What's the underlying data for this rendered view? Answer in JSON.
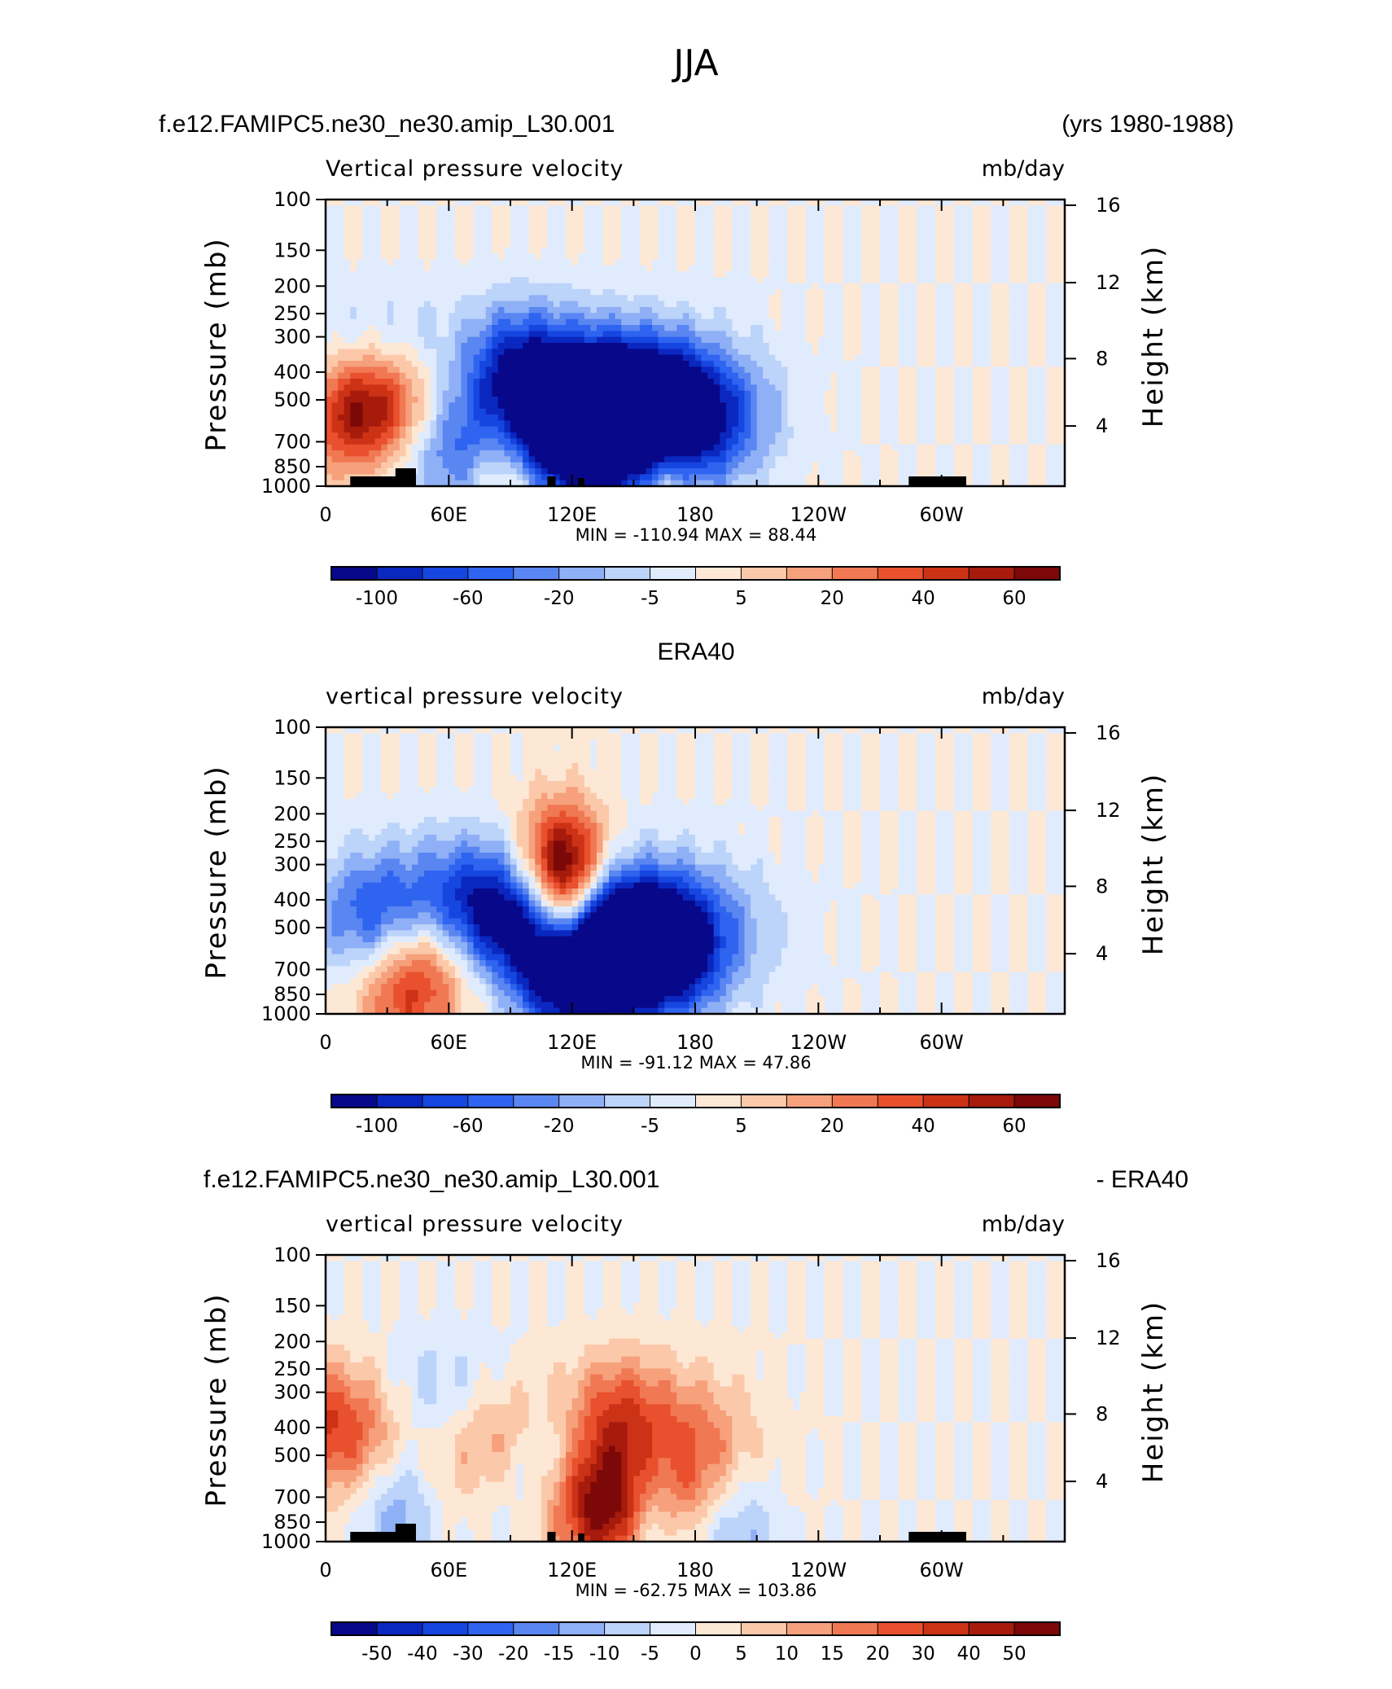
{
  "figure": {
    "title": "JJA"
  },
  "chart_data": [
    {
      "type": "heatmap",
      "header_left": "f.e12.FAMIPC5.ne30_ne30.amip_L30.001",
      "header_right": "(yrs 1980-1988)",
      "subtitle_left": "Vertical pressure velocity",
      "subtitle_right": "mb/day",
      "ylabel": "Pressure (mb)",
      "y2label": "Height (km)",
      "xticks": [
        "0",
        "60E",
        "120E",
        "180",
        "120W",
        "60W"
      ],
      "yticks": [
        "100",
        "150",
        "200",
        "250",
        "300",
        "400",
        "500",
        "700",
        "850",
        "1000"
      ],
      "y2ticks": [
        "16",
        "12",
        "8",
        "4"
      ],
      "min_label": "MIN =",
      "min_value": "-110.94",
      "max_label": "MAX =",
      "max_value": "88.44",
      "colorbar_labels": [
        "-100",
        "-60",
        "-20",
        "-5",
        "5",
        "20",
        "40",
        "60"
      ],
      "colorbar_colors": [
        "#08088a",
        "#0a28c0",
        "#1646e0",
        "#2f64f0",
        "#5a86f2",
        "#8fb0f6",
        "#bcd3fa",
        "#e0ecfd",
        "#fde8d6",
        "#fbc9aa",
        "#f6a07c",
        "#f07853",
        "#e8502e",
        "#cc3216",
        "#a61b0c",
        "#7d0808"
      ],
      "field": {
        "pos": [
          [
            18,
            4.5,
            42,
            1.0
          ],
          [
            40,
            4.5,
            60,
            0.9
          ],
          [
            65,
            6.5,
            45,
            0.6
          ],
          [
            110,
            5,
            44,
            0.8
          ],
          [
            118,
            5,
            38,
            0.9
          ],
          [
            88,
            0.5,
            20,
            0.4
          ],
          [
            82,
            2.5,
            22,
            0.3
          ],
          [
            165,
            1,
            16,
            0.4
          ],
          [
            145,
            2,
            12,
            0.3
          ]
        ],
        "neg": [
          [
            60,
            6.5,
            110,
            1.0
          ],
          [
            63,
            2.8,
            60,
            1.0
          ],
          [
            120,
            4.5,
            55,
            1.0
          ],
          [
            150,
            4.5,
            72,
            1.0
          ],
          [
            168,
            3.5,
            55,
            0.9
          ],
          [
            99,
            6,
            38,
            0.8
          ],
          [
            142,
            0.6,
            14,
            0.3
          ],
          [
            125,
            3.5,
            38,
            1.5
          ]
        ]
      }
    },
    {
      "type": "heatmap",
      "header_left": "ERA40",
      "subtitle_left": "vertical pressure velocity",
      "subtitle_right": "mb/day",
      "ylabel": "Pressure (mb)",
      "y2label": "Height (km)",
      "xticks": [
        "0",
        "60E",
        "120E",
        "180",
        "120W",
        "60W"
      ],
      "yticks": [
        "100",
        "150",
        "200",
        "250",
        "300",
        "400",
        "500",
        "700",
        "850",
        "1000"
      ],
      "y2ticks": [
        "16",
        "12",
        "8",
        "4"
      ],
      "min_label": "MIN =",
      "min_value": "-91.12",
      "max_label": "MAX =",
      "max_value": "47.86",
      "colorbar_labels": [
        "-100",
        "-60",
        "-20",
        "-5",
        "5",
        "20",
        "40",
        "60"
      ],
      "colorbar_colors": [
        "#08088a",
        "#0a28c0",
        "#1646e0",
        "#2f64f0",
        "#5a86f2",
        "#8fb0f6",
        "#bcd3fa",
        "#e0ecfd",
        "#fde8d6",
        "#fbc9aa",
        "#f6a07c",
        "#f07853",
        "#e8502e",
        "#cc3216",
        "#a61b0c",
        "#7d0808"
      ],
      "field": {
        "pos": [
          [
            42,
            3.5,
            45,
            0.9
          ],
          [
            40,
            0.5,
            35,
            0.4
          ],
          [
            110,
            8,
            30,
            0.6
          ],
          [
            118,
            8,
            25,
            0.7
          ],
          [
            118,
            5,
            20,
            0.9
          ],
          [
            90,
            1,
            18,
            0.3
          ]
        ],
        "neg": [
          [
            25,
            5,
            38,
            1.0
          ],
          [
            75,
            6,
            52,
            1.0
          ],
          [
            145,
            4.8,
            80,
            1.0
          ],
          [
            125,
            3.2,
            55,
            1.0
          ],
          [
            165,
            3.2,
            40,
            0.8
          ],
          [
            100,
            1,
            25,
            0.4
          ],
          [
            130,
            2,
            22,
            0.8
          ]
        ]
      }
    },
    {
      "type": "heatmap",
      "header_left": "f.e12.FAMIPC5.ne30_ne30.amip_L30.001",
      "header_right": "- ERA40",
      "subtitle_left": "vertical pressure velocity",
      "subtitle_right": "mb/day",
      "ylabel": "Pressure (mb)",
      "y2label": "Height (km)",
      "xticks": [
        "0",
        "60E",
        "120E",
        "180",
        "120W",
        "60W"
      ],
      "yticks": [
        "100",
        "150",
        "200",
        "250",
        "300",
        "400",
        "500",
        "700",
        "850",
        "1000"
      ],
      "y2ticks": [
        "16",
        "12",
        "8",
        "4"
      ],
      "min_label": "MIN =",
      "min_value": "-62.75",
      "max_label": "MAX =",
      "max_value": "103.86",
      "colorbar_labels": [
        "-50",
        "-40",
        "-30",
        "-20",
        "-15",
        "-10",
        "-5",
        "0",
        "5",
        "10",
        "15",
        "20",
        "30",
        "40",
        "50"
      ],
      "colorbar_colors": [
        "#08088a",
        "#0a28c0",
        "#1646e0",
        "#2f64f0",
        "#5a86f2",
        "#8fb0f6",
        "#bcd3fa",
        "#e0ecfd",
        "#fde8d6",
        "#fbc9aa",
        "#f6a07c",
        "#f07853",
        "#e8502e",
        "#cc3216",
        "#a61b0c",
        "#7d0808"
      ],
      "field": {
        "pos": [
          [
            18,
            6.5,
            80,
            1.0
          ],
          [
            82,
            6,
            45,
            0.8
          ],
          [
            140,
            6,
            32,
            0.8
          ],
          [
            123,
            3,
            32,
            1.4
          ],
          [
            151,
            6,
            62,
            1.0
          ],
          [
            168,
            3.5,
            45,
            0.8
          ],
          [
            140,
            2,
            20,
            0.6
          ]
        ],
        "neg": [
          [
            55,
            7,
            62,
            1.0
          ],
          [
            115,
            4,
            42,
            0.9
          ],
          [
            144,
            5,
            52,
            1.5
          ],
          [
            190,
            1,
            14,
            0.3
          ],
          [
            207,
            1,
            14,
            0.3
          ],
          [
            35,
            2,
            22,
            0.4
          ],
          [
            159,
            1.2,
            18,
            0.3
          ]
        ]
      }
    }
  ]
}
